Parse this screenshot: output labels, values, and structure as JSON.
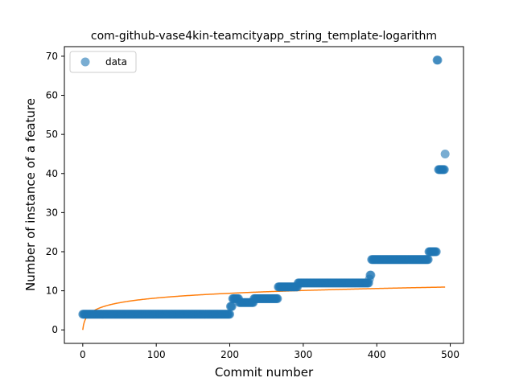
{
  "chart_data": {
    "type": "scatter",
    "title": "com-github-vase4kin-teamcityapp_string_template-logarithm",
    "xlabel": "Commit number",
    "ylabel": "Number of instance of a feature",
    "xlim": [
      -25,
      518
    ],
    "ylim": [
      -3.45,
      72.45
    ],
    "xticks": [
      0,
      100,
      200,
      300,
      400,
      500
    ],
    "yticks": [
      0,
      10,
      20,
      30,
      40,
      50,
      60,
      70
    ],
    "grid": false,
    "legend": {
      "position": "top-left",
      "entries": [
        "data"
      ]
    },
    "series": [
      {
        "name": "data",
        "kind": "points",
        "color": "#1f77b4",
        "segments": [
          {
            "x_from": 0,
            "x_to": 200,
            "y": 4
          },
          {
            "x_from": 201,
            "x_to": 203,
            "y": 6
          },
          {
            "x_from": 204,
            "x_to": 212,
            "y": 8
          },
          {
            "x_from": 213,
            "x_to": 232,
            "y": 7
          },
          {
            "x_from": 233,
            "x_to": 265,
            "y": 8
          },
          {
            "x_from": 266,
            "x_to": 292,
            "y": 11
          },
          {
            "x_from": 293,
            "x_to": 389,
            "y": 12
          },
          {
            "x_from": 390,
            "x_to": 390,
            "y": 13
          },
          {
            "x_from": 391,
            "x_to": 392,
            "y": 14
          },
          {
            "x_from": 393,
            "x_to": 470,
            "y": 18
          },
          {
            "x_from": 471,
            "x_to": 481,
            "y": 20
          },
          {
            "x_from": 482,
            "x_to": 483,
            "y": 69
          },
          {
            "x_from": 484,
            "x_to": 492,
            "y": 41
          },
          {
            "x_from": 493,
            "x_to": 493,
            "y": 45
          }
        ]
      },
      {
        "kind": "line",
        "fit": "logarithmic",
        "color": "#ff7f0e",
        "x_range": [
          0,
          493
        ],
        "a": 1.766,
        "b": 1.9
      }
    ]
  }
}
